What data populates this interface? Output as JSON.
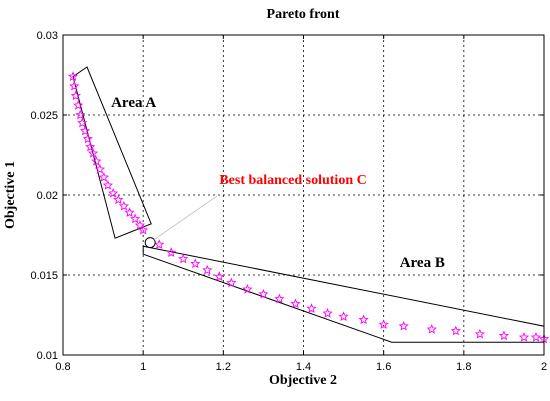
{
  "chart_data": {
    "type": "scatter",
    "title": "Pareto front",
    "xlabel": "Objective 2",
    "ylabel": "Objective 1",
    "xlim": [
      0.8,
      2.0
    ],
    "ylim": [
      0.01,
      0.03
    ],
    "xticks": [
      "0.8",
      "1",
      "1.2",
      "1.4",
      "1.6",
      "1.8",
      "2"
    ],
    "yticks": [
      "0.01",
      "0.015",
      "0.02",
      "0.025",
      "0.03"
    ],
    "grid": true,
    "marker": "star",
    "marker_color": "#ff00ff",
    "series": [
      {
        "x": [
          0.825,
          0.828,
          0.832,
          0.838,
          0.843,
          0.848,
          0.855,
          0.862,
          0.868,
          0.875,
          0.883,
          0.892,
          0.902,
          0.912,
          0.925,
          0.938,
          0.952,
          0.966,
          0.98,
          0.992,
          1.0,
          1.04,
          1.07,
          1.1,
          1.13,
          1.16,
          1.19,
          1.22,
          1.26,
          1.3,
          1.34,
          1.38,
          1.42,
          1.46,
          1.5,
          1.55,
          1.6,
          1.65,
          1.72,
          1.78,
          1.84,
          1.9,
          1.95,
          1.98,
          2.0
        ],
        "y": [
          0.0274,
          0.0268,
          0.0262,
          0.0256,
          0.025,
          0.0245,
          0.024,
          0.0235,
          0.023,
          0.0226,
          0.0221,
          0.0216,
          0.0211,
          0.0206,
          0.0201,
          0.0197,
          0.0193,
          0.0189,
          0.0185,
          0.0181,
          0.0178,
          0.0169,
          0.0164,
          0.016,
          0.0157,
          0.0153,
          0.0149,
          0.0145,
          0.0141,
          0.0138,
          0.0135,
          0.0132,
          0.0129,
          0.0126,
          0.0124,
          0.0122,
          0.0119,
          0.0118,
          0.0116,
          0.0115,
          0.0113,
          0.0112,
          0.0111,
          0.0111,
          0.011
        ]
      }
    ],
    "regions": [
      {
        "label": "Area A",
        "polygon": [
          [
            0.825,
            0.0274
          ],
          [
            0.86,
            0.028
          ],
          [
            1.02,
            0.0182
          ],
          [
            0.93,
            0.0173
          ]
        ]
      },
      {
        "label": "Area B",
        "polygon": [
          [
            1.0,
            0.0168
          ],
          [
            2.0,
            0.0118
          ],
          [
            2.0,
            0.0108
          ],
          [
            1.62,
            0.0108
          ],
          [
            1.0,
            0.0163
          ]
        ]
      }
    ],
    "annotations": [
      {
        "text": "Area A",
        "x": 0.92,
        "y": 0.0255
      },
      {
        "text": "Area B",
        "x": 1.64,
        "y": 0.0155
      },
      {
        "text": "Best balanced solution C",
        "x": 1.19,
        "y": 0.0207,
        "color": "#ff0000",
        "points_to": [
          1.01,
          0.0174
        ]
      }
    ]
  }
}
